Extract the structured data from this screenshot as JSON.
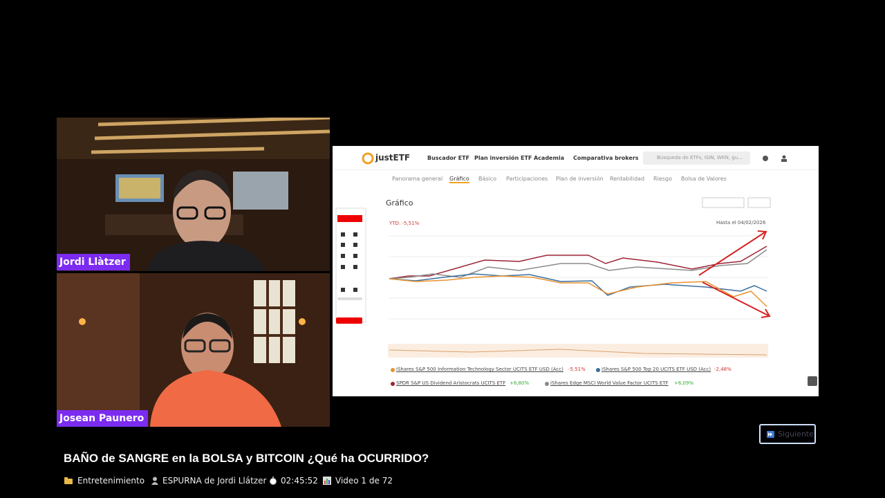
{
  "speakers": [
    {
      "name": "Jordi Llàtzer"
    },
    {
      "name": "Josean Paunero"
    }
  ],
  "screen": {
    "logo": "justETF",
    "nav": [
      "Buscador ETF",
      "Plan inversión ETF",
      "Academia",
      "Comparativa brokers"
    ],
    "search": "Búsqueda de ETFs, ISIN, WKN, gu...",
    "tabs": [
      "Panorama general",
      "Gráfico",
      "Básico",
      "Participaciones",
      "Plan de inversión",
      "Rentabilidad",
      "Riesgo",
      "Bolsa de Valores"
    ],
    "section": "Gráfico",
    "ytd": "YTD: -5,51%",
    "date": "Hasta el 04/02/2026",
    "legend": [
      {
        "name": "iShares S&P 500 Information Technology Sector UCITS ETF USD (Acc)",
        "change": "-5,51%",
        "color": "#e8912d"
      },
      {
        "name": "iShares S&P 500 Top 20 UCITS ETF USD (Acc)",
        "change": "-2,48%",
        "color": "#3a6e9c"
      },
      {
        "name": "SPDR S&P US Dividend Aristocrats UCITS ETF",
        "change": "+6,80%",
        "color": "#9b2335"
      },
      {
        "name": "iShares Edge MSCI World Value Factor UCITS ETF",
        "change": "+6,09%",
        "color": "#8a8a8a"
      }
    ]
  },
  "next_button": "Siguiente",
  "title": "BAÑO de SANGRE en la BOLSA y BITCOIN ¿Qué ha OCURRIDO?",
  "meta": {
    "category": "Entretenimiento",
    "channel": "ESPURNA de Jordi Llátzer",
    "duration": "02:45:52",
    "position": "Video 1 de 72"
  }
}
